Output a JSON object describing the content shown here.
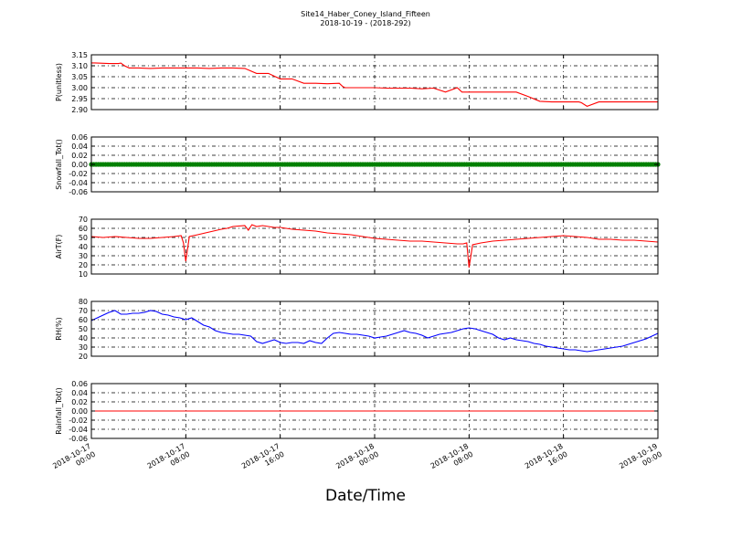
{
  "figure": {
    "title": "Site14_Haber_Coney_Island_Fifteen",
    "subtitle": "2018-10-19 - (2018-292)",
    "xlabel": "Date/Time"
  },
  "chart_data": [
    {
      "type": "line",
      "ylabel": "P(unitless)",
      "ylim": [
        2.9,
        3.15
      ],
      "yticks": [
        "3.15",
        "3.10",
        "3.05",
        "3.00",
        "2.95",
        "2.90"
      ],
      "ytick_values": [
        3.15,
        3.1,
        3.05,
        3.0,
        2.95,
        2.9
      ],
      "xlim": [
        0,
        48
      ],
      "grid": true,
      "series": [
        {
          "color": "#ff0000",
          "x": [
            0,
            0.3,
            1.5,
            2.3,
            2.5,
            2.8,
            3.2,
            4,
            5,
            6,
            7,
            8,
            9,
            10,
            11,
            11.5,
            12,
            13,
            14,
            15,
            16,
            17,
            18,
            19,
            20,
            21,
            21.3,
            21.5,
            22,
            23,
            24,
            25,
            26,
            27,
            28,
            29,
            30,
            31,
            31.4,
            32,
            32.5,
            33,
            34,
            35,
            36,
            37,
            38,
            39,
            40,
            40.5,
            41,
            41.3,
            41.5,
            42,
            43,
            44,
            45,
            46,
            47,
            48
          ],
          "y": [
            3.113,
            3.113,
            3.11,
            3.11,
            3.112,
            3.1,
            3.09,
            3.09,
            3.088,
            3.09,
            3.09,
            3.09,
            3.09,
            3.088,
            3.09,
            3.09,
            3.09,
            3.088,
            3.065,
            3.065,
            3.04,
            3.04,
            3.02,
            3.02,
            3.018,
            3.02,
            3.005,
            3.0,
            3.0,
            3.0,
            3.0,
            2.998,
            2.998,
            2.998,
            2.995,
            2.998,
            2.98,
            3.0,
            2.98,
            2.98,
            2.98,
            2.98,
            2.98,
            2.98,
            2.98,
            2.96,
            2.938,
            2.935,
            2.935,
            2.935,
            2.935,
            2.935,
            2.932,
            2.915,
            2.935,
            2.935,
            2.935,
            2.935,
            2.935,
            2.935
          ]
        }
      ]
    },
    {
      "type": "scatter",
      "ylabel": "Snowfall_Tot()",
      "ylim": [
        -0.06,
        0.06
      ],
      "yticks": [
        "0.06",
        "0.04",
        "0.02",
        "0.00",
        "-0.02",
        "-0.04",
        "-0.06"
      ],
      "ytick_values": [
        0.06,
        0.04,
        0.02,
        0.0,
        -0.02,
        -0.04,
        -0.06
      ],
      "xlim": [
        0,
        48
      ],
      "grid": true,
      "series": [
        {
          "color": "#008000",
          "x": [
            0,
            48
          ],
          "y": [
            0,
            0
          ],
          "note_marker": "dense markers"
        }
      ]
    },
    {
      "type": "line",
      "ylabel": "AirT(F)",
      "ylim": [
        10,
        70
      ],
      "yticks": [
        "70",
        "60",
        "50",
        "40",
        "30",
        "20",
        "10"
      ],
      "ytick_values": [
        70,
        60,
        50,
        40,
        30,
        20,
        10
      ],
      "xlim": [
        0,
        48
      ],
      "grid": true,
      "series": [
        {
          "color": "#ff0000",
          "x": [
            0,
            1,
            2,
            3,
            4,
            5,
            6,
            7,
            7.6,
            7.8,
            8.0,
            8.3,
            9,
            10,
            11,
            11.5,
            12,
            13,
            13.3,
            13.6,
            14,
            14.5,
            15,
            15.5,
            16,
            17,
            18,
            19,
            20,
            21,
            22,
            23,
            24,
            25,
            26,
            27,
            28,
            29,
            30,
            31,
            31.5,
            31.8,
            32.0,
            32.3,
            33,
            34,
            35,
            36,
            37,
            38,
            39,
            40,
            41,
            42,
            43,
            44,
            45,
            46,
            47,
            48
          ],
          "y": [
            51,
            50,
            51,
            50,
            49,
            49,
            50,
            51,
            52,
            44,
            24,
            51,
            53,
            56,
            59,
            60,
            62,
            63,
            58,
            64,
            62,
            63,
            62,
            61,
            61,
            59,
            58,
            57,
            55,
            54,
            53,
            51,
            49,
            48,
            47,
            46,
            46,
            45,
            44,
            43,
            43,
            44,
            17,
            42,
            44,
            46,
            47,
            48,
            49,
            50,
            51,
            52,
            51,
            50,
            48,
            48,
            47,
            47,
            46,
            45
          ]
        }
      ]
    },
    {
      "type": "line",
      "ylabel": "RH(%)",
      "ylim": [
        20,
        80
      ],
      "yticks": [
        "80",
        "70",
        "60",
        "50",
        "40",
        "30",
        "20"
      ],
      "ytick_values": [
        80,
        70,
        60,
        50,
        40,
        30,
        20
      ],
      "xlim": [
        0,
        48
      ],
      "grid": true,
      "series": [
        {
          "color": "#0000ff",
          "x": [
            0,
            0.5,
            1,
            1.5,
            2,
            2.5,
            3,
            3.5,
            4,
            4.5,
            5,
            5.5,
            6,
            6.5,
            7,
            7.5,
            8,
            8.5,
            9,
            9.5,
            10,
            10.5,
            11,
            11.5,
            12,
            12.5,
            13,
            13.5,
            14,
            14.5,
            15,
            15.5,
            16,
            16.5,
            17,
            17.5,
            18,
            18.5,
            19,
            19.5,
            20,
            20.5,
            21,
            21.5,
            22,
            22.5,
            23,
            23.5,
            24,
            24.5,
            25,
            25.5,
            26,
            26.5,
            27,
            27.5,
            28,
            28.5,
            29,
            29.5,
            30,
            30.5,
            31,
            31.5,
            32,
            32.5,
            33,
            33.5,
            34,
            34.5,
            35,
            35.5,
            36,
            36.5,
            37,
            37.5,
            38,
            38.5,
            39,
            39.5,
            40,
            40.5,
            41,
            41.5,
            42,
            42.5,
            43,
            43.5,
            44,
            44.5,
            45,
            45.5,
            46,
            46.5,
            47,
            47.5,
            48
          ],
          "y": [
            59,
            62,
            65,
            68,
            70,
            66,
            66,
            67,
            67,
            68,
            70,
            69,
            66,
            65,
            63,
            62,
            60,
            62,
            58,
            54,
            52,
            48,
            46,
            45,
            44,
            44,
            43,
            42,
            36,
            34,
            36,
            38,
            35,
            34,
            35,
            35,
            34,
            37,
            35,
            34,
            40,
            45,
            46,
            45,
            44,
            44,
            43,
            42,
            40,
            41,
            42,
            44,
            46,
            48,
            46,
            45,
            43,
            40,
            42,
            44,
            45,
            46,
            48,
            50,
            51,
            50,
            48,
            46,
            44,
            40,
            38,
            40,
            38,
            37,
            36,
            34,
            33,
            31,
            30,
            29,
            28,
            27,
            27,
            26,
            25,
            26,
            27,
            28,
            29,
            30,
            31,
            33,
            35,
            37,
            39,
            42,
            45
          ]
        }
      ]
    },
    {
      "type": "line",
      "ylabel": "Rainfall_Tot()",
      "ylim": [
        -0.06,
        0.06
      ],
      "yticks": [
        "0.06",
        "0.04",
        "0.02",
        "0.00",
        "-0.02",
        "-0.04",
        "-0.06"
      ],
      "ytick_values": [
        0.06,
        0.04,
        0.02,
        0.0,
        -0.02,
        -0.04,
        -0.06
      ],
      "xlim": [
        0,
        48
      ],
      "grid": true,
      "series": [
        {
          "color": "#ff0000",
          "x": [
            0,
            48
          ],
          "y": [
            0,
            0
          ]
        }
      ]
    }
  ],
  "x_axis": {
    "tick_values": [
      0,
      8,
      16,
      24,
      32,
      40,
      48
    ],
    "tick_labels": [
      [
        "2018-10-17",
        "00:00"
      ],
      [
        "2018-10-17",
        "08:00"
      ],
      [
        "2018-10-17",
        "16:00"
      ],
      [
        "2018-10-18",
        "00:00"
      ],
      [
        "2018-10-18",
        "08:00"
      ],
      [
        "2018-10-18",
        "16:00"
      ],
      [
        "2018-10-19",
        "00:00"
      ]
    ]
  }
}
